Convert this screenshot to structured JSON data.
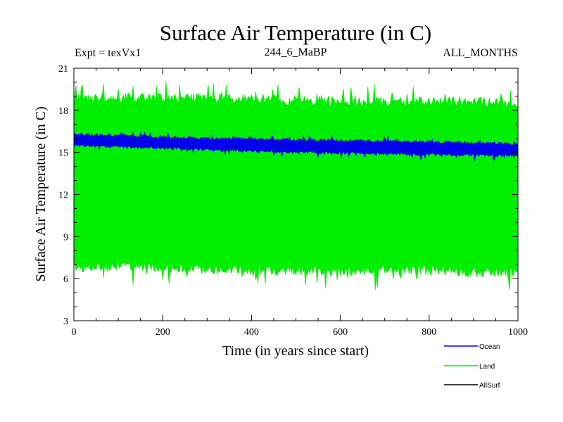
{
  "chart_data": {
    "type": "line",
    "title": "Surface Air Temperature (in C)",
    "subtitle_left": "Expt = texVx1",
    "subtitle_center": "244_6_MaBP",
    "subtitle_right": "ALL_MONTHS",
    "xlabel": "Time (in years since start)",
    "ylabel": "Surface Air Temperature (in C)",
    "xlim": [
      0,
      1000
    ],
    "ylim": [
      3,
      21
    ],
    "xticks": [
      0,
      200,
      400,
      600,
      800,
      1000
    ],
    "yticks": [
      3,
      6,
      9,
      12,
      15,
      18,
      21
    ],
    "legend_position": "bottom-right",
    "series": [
      {
        "name": "Land",
        "color": "#00ee00",
        "band_low": [
          6.8,
          6.9,
          6.8,
          6.7,
          6.6,
          6.6,
          6.5,
          6.6,
          6.6,
          6.5,
          6.5
        ],
        "band_high": [
          18.8,
          18.9,
          18.9,
          18.8,
          18.8,
          18.7,
          18.7,
          18.6,
          18.6,
          18.6,
          18.5
        ],
        "extreme_min": 5.2,
        "extreme_max": 20.1
      },
      {
        "name": "Ocean",
        "color": "#0000ee",
        "band_low": [
          15.5,
          15.4,
          15.3,
          15.2,
          15.1,
          15.0,
          14.95,
          14.9,
          14.85,
          14.8,
          14.75
        ],
        "band_high": [
          16.3,
          16.2,
          16.1,
          16.0,
          15.95,
          15.9,
          15.85,
          15.8,
          15.75,
          15.7,
          15.6
        ]
      },
      {
        "name": "AllSurf",
        "color": "#000000"
      }
    ]
  }
}
